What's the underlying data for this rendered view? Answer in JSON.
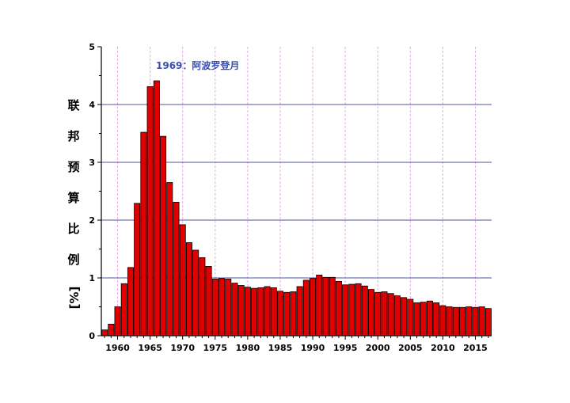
{
  "chart_data": {
    "type": "bar",
    "title": "",
    "xlabel": "",
    "ylabel": "联邦预算比例 [%]",
    "ylabel_chars": [
      "联",
      "邦",
      "预",
      "算",
      "比",
      "例",
      "[%]"
    ],
    "ylim": [
      0,
      5
    ],
    "yticks": [
      "0",
      "1",
      "2",
      "3",
      "4",
      "5"
    ],
    "xticks": [
      "1960",
      "1965",
      "1970",
      "1975",
      "1980",
      "1985",
      "1990",
      "1995",
      "2000",
      "2005",
      "2010",
      "2015"
    ],
    "grid": "horizontal major lines, vertical dashed minor lines",
    "bar_color": "#e00000",
    "grid_color": "#4a55a0",
    "vgrid_color": "#e8a8e8",
    "annotation": "1969：阿波罗登月",
    "annotation_color": "#3a4fb0",
    "x": [
      1958,
      1959,
      1960,
      1961,
      1962,
      1963,
      1964,
      1965,
      1966,
      1967,
      1968,
      1969,
      1970,
      1971,
      1972,
      1973,
      1974,
      1975,
      1976,
      1977,
      1978,
      1979,
      1980,
      1981,
      1982,
      1983,
      1984,
      1985,
      1986,
      1987,
      1988,
      1989,
      1990,
      1991,
      1992,
      1993,
      1994,
      1995,
      1996,
      1997,
      1998,
      1999,
      2000,
      2001,
      2002,
      2003,
      2004,
      2005,
      2006,
      2007,
      2008,
      2009,
      2010,
      2011,
      2012,
      2013,
      2014,
      2015,
      2016,
      2017
    ],
    "values": [
      0.1,
      0.2,
      0.5,
      0.9,
      1.18,
      2.29,
      3.52,
      4.31,
      4.41,
      3.45,
      2.65,
      2.31,
      1.92,
      1.61,
      1.48,
      1.35,
      1.2,
      0.98,
      0.99,
      0.98,
      0.91,
      0.87,
      0.84,
      0.82,
      0.83,
      0.85,
      0.83,
      0.77,
      0.75,
      0.76,
      0.85,
      0.96,
      0.99,
      1.05,
      1.01,
      1.01,
      0.94,
      0.88,
      0.89,
      0.9,
      0.86,
      0.8,
      0.75,
      0.76,
      0.73,
      0.69,
      0.66,
      0.63,
      0.57,
      0.58,
      0.6,
      0.57,
      0.52,
      0.5,
      0.49,
      0.49,
      0.5,
      0.49,
      0.5,
      0.47
    ]
  }
}
